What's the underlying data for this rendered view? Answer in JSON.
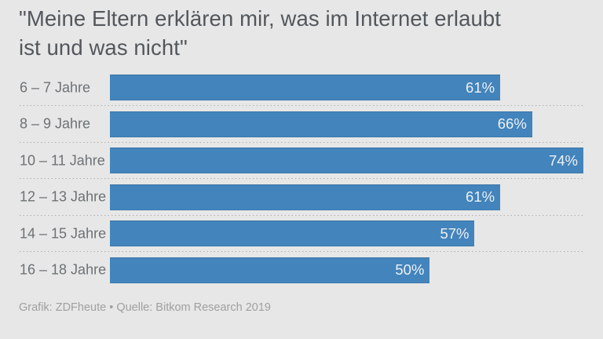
{
  "header": {
    "title_line1": "\"Meine Eltern erklären mir, was im Internet erlaubt",
    "title_line2": "ist und was nicht\""
  },
  "footer": {
    "credit": "Grafik: ZDFheute • Quelle: Bitkom Research 2019"
  },
  "colors": {
    "background": "#e6e7e6",
    "bar": "#4384bc",
    "title_text": "#53575c",
    "label_text": "#6e7276",
    "value_text": "#eef1f3",
    "footer_text": "#9fa1a1",
    "separator_dots": "#b0b1b0"
  },
  "chart_data": {
    "type": "bar",
    "orientation": "horizontal",
    "title": "\"Meine Eltern erklären mir, was im Internet erlaubt ist und was nicht\"",
    "categories": [
      "6 – 7 Jahre",
      "8 – 9 Jahre",
      "10 – 11 Jahre",
      "12 – 13 Jahre",
      "14 – 15 Jahre",
      "16 – 18 Jahre"
    ],
    "values": [
      61,
      66,
      74,
      61,
      57,
      50
    ],
    "value_labels": [
      "61%",
      "66%",
      "74%",
      "61%",
      "57%",
      "50%"
    ],
    "unit": "%",
    "xlim": [
      0,
      74
    ],
    "grid": false,
    "legend": false,
    "source_line": "Grafik: ZDFheute • Quelle: Bitkom Research 2019"
  }
}
